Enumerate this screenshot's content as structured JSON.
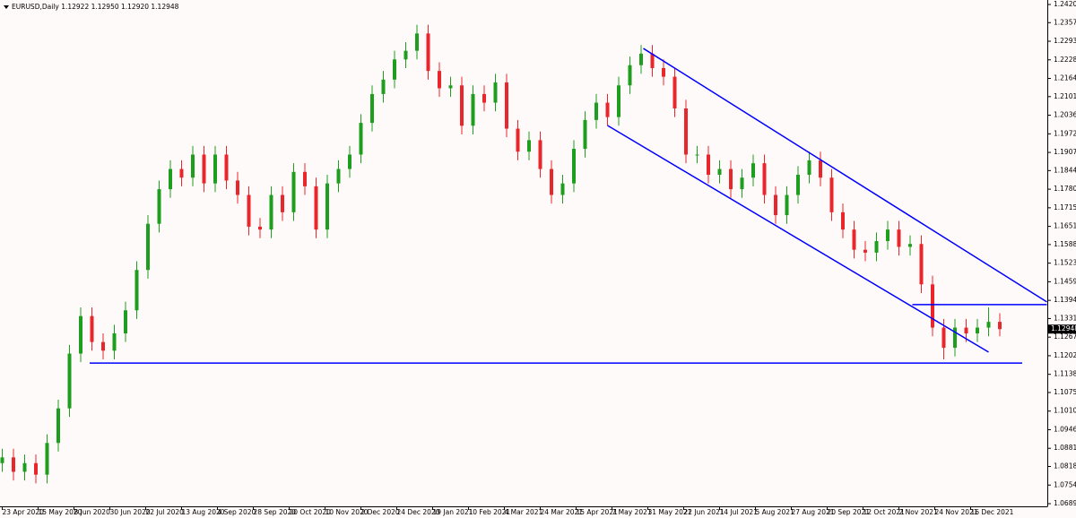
{
  "chart_data": {
    "type": "candlestick",
    "title": "EURUSD,Daily  1.12922 1.12950 1.12920 1.12948",
    "xlim": [
      -1,
      466.2
    ],
    "ylim": [
      1.06802,
      1.24298
    ],
    "xticks": [
      {
        "value": 0,
        "label": "23 Apr 2020"
      },
      {
        "value": 16,
        "label": "15 May 2020"
      },
      {
        "value": 32,
        "label": "8 Jun 2020"
      },
      {
        "value": 48,
        "label": "30 Jun 2020"
      },
      {
        "value": 64,
        "label": "22 Jul 2020"
      },
      {
        "value": 80,
        "label": "13 Aug 2020"
      },
      {
        "value": 96,
        "label": "4 Sep 2020"
      },
      {
        "value": 112,
        "label": "28 Sep 2020"
      },
      {
        "value": 128,
        "label": "20 Oct 2020"
      },
      {
        "value": 144,
        "label": "10 Nov 2020"
      },
      {
        "value": 160,
        "label": "2 Dec 2020"
      },
      {
        "value": 176,
        "label": "24 Dec 2020"
      },
      {
        "value": 192,
        "label": "19 Jan 2021"
      },
      {
        "value": 208,
        "label": "10 Feb 2021"
      },
      {
        "value": 224,
        "label": "4 Mar 2021"
      },
      {
        "value": 240,
        "label": "24 Mar 2021"
      },
      {
        "value": 256,
        "label": "15 Apr 2021"
      },
      {
        "value": 272,
        "label": "7 May 2021"
      },
      {
        "value": 288,
        "label": "31 May 2021"
      },
      {
        "value": 304,
        "label": "22 Jun 2021"
      },
      {
        "value": 320,
        "label": "14 Jul 2021"
      },
      {
        "value": 336,
        "label": "5 Aug 2021"
      },
      {
        "value": 352,
        "label": "27 Aug 2021"
      },
      {
        "value": 368,
        "label": "20 Sep 2021"
      },
      {
        "value": 384,
        "label": "12 Oct 2021"
      },
      {
        "value": 400,
        "label": "2 Nov 2021"
      },
      {
        "value": 416,
        "label": "24 Nov 2021"
      },
      {
        "value": 432,
        "label": "16 Dec 2021"
      }
    ],
    "yticks": [
      1.24205,
      1.23575,
      {
        "value": 1.2293,
        "label": "1.22930"
      },
      1.22285,
      {
        "value": 1.2164,
        "label": "1.21640"
      },
      {
        "value": 1.2101,
        "label": "1.21010"
      },
      1.20365,
      {
        "value": 1.1972,
        "label": "1.19720"
      },
      1.19075,
      1.18445,
      {
        "value": 1.178,
        "label": "1.17800"
      },
      1.17155,
      {
        "value": 1.1651,
        "label": "1.16510"
      },
      {
        "value": 1.1588,
        "label": "1.15880"
      },
      1.15235,
      {
        "value": 1.1459,
        "label": "1.14590"
      },
      1.13945,
      1.13315,
      {
        "value": 1.1267,
        "label": "1.12670"
      },
      1.12025,
      {
        "value": 1.1138,
        "label": "1.11380"
      },
      {
        "value": 1.1075,
        "label": "1.10750"
      },
      1.10105,
      {
        "value": 1.0946,
        "label": "1.09460"
      },
      1.08815,
      1.08185,
      {
        "value": 1.0754,
        "label": "1.07540"
      },
      1.06895
    ],
    "up_color": "#1e9e1e",
    "down_color": "#e8262b",
    "wick_color": "#555555",
    "series": [
      {
        "name": "EURUSD",
        "x": [
          0,
          5,
          10,
          15,
          20,
          25,
          30,
          35,
          40,
          45,
          50,
          55,
          60,
          65,
          70,
          75,
          80,
          85,
          90,
          95,
          100,
          105,
          110,
          115,
          120,
          125,
          130,
          135,
          140,
          145,
          150,
          155,
          160,
          165,
          170,
          175,
          180,
          185,
          190,
          195,
          200,
          205,
          210,
          215,
          220,
          225,
          230,
          235,
          240,
          245,
          250,
          255,
          260,
          265,
          270,
          275,
          280,
          285,
          290,
          295,
          300,
          305,
          310,
          315,
          320,
          325,
          330,
          335,
          340,
          345,
          350,
          355,
          360,
          365,
          370,
          375,
          380,
          385,
          390,
          395,
          400,
          405,
          410,
          415,
          420,
          425,
          430,
          435,
          440,
          445
        ],
        "open": [
          1.083,
          1.085,
          1.08,
          1.083,
          1.079,
          1.09,
          1.102,
          1.121,
          1.134,
          1.125,
          1.122,
          1.128,
          1.136,
          1.15,
          1.166,
          1.178,
          1.185,
          1.182,
          1.19,
          1.18,
          1.19,
          1.181,
          1.176,
          1.165,
          1.164,
          1.176,
          1.17,
          1.184,
          1.179,
          1.164,
          1.18,
          1.185,
          1.19,
          1.201,
          1.211,
          1.216,
          1.223,
          1.226,
          1.232,
          1.219,
          1.213,
          1.214,
          1.2,
          1.211,
          1.208,
          1.215,
          1.199,
          1.191,
          1.195,
          1.185,
          1.176,
          1.18,
          1.192,
          1.202,
          1.208,
          1.203,
          1.214,
          1.221,
          1.225,
          1.22,
          1.217,
          1.206,
          1.19,
          1.19,
          1.183,
          1.185,
          1.178,
          1.182,
          1.187,
          1.176,
          1.169,
          1.176,
          1.183,
          1.188,
          1.182,
          1.17,
          1.164,
          1.157,
          1.156,
          1.16,
          1.164,
          1.158,
          1.159,
          1.145,
          1.13,
          1.123,
          1.13,
          1.128,
          1.13,
          1.132
        ],
        "high": [
          1.088,
          1.088,
          1.086,
          1.086,
          1.093,
          1.105,
          1.124,
          1.137,
          1.137,
          1.128,
          1.131,
          1.139,
          1.153,
          1.169,
          1.181,
          1.188,
          1.188,
          1.193,
          1.193,
          1.193,
          1.193,
          1.184,
          1.179,
          1.168,
          1.179,
          1.179,
          1.187,
          1.187,
          1.182,
          1.183,
          1.188,
          1.193,
          1.204,
          1.214,
          1.219,
          1.226,
          1.229,
          1.235,
          1.235,
          1.222,
          1.217,
          1.217,
          1.214,
          1.214,
          1.218,
          1.218,
          1.202,
          1.198,
          1.198,
          1.188,
          1.183,
          1.195,
          1.205,
          1.211,
          1.211,
          1.217,
          1.224,
          1.228,
          1.228,
          1.223,
          1.22,
          1.209,
          1.193,
          1.193,
          1.188,
          1.188,
          1.185,
          1.19,
          1.19,
          1.179,
          1.179,
          1.186,
          1.191,
          1.191,
          1.185,
          1.173,
          1.167,
          1.16,
          1.163,
          1.167,
          1.167,
          1.162,
          1.162,
          1.148,
          1.133,
          1.133,
          1.133,
          1.133,
          1.137,
          1.135
        ],
        "low": [
          1.08,
          1.077,
          1.077,
          1.076,
          1.076,
          1.087,
          1.099,
          1.118,
          1.122,
          1.119,
          1.119,
          1.125,
          1.133,
          1.147,
          1.163,
          1.175,
          1.179,
          1.179,
          1.177,
          1.177,
          1.178,
          1.173,
          1.162,
          1.161,
          1.161,
          1.167,
          1.167,
          1.176,
          1.161,
          1.161,
          1.177,
          1.182,
          1.187,
          1.198,
          1.208,
          1.213,
          1.22,
          1.223,
          1.216,
          1.21,
          1.21,
          1.197,
          1.197,
          1.205,
          1.205,
          1.196,
          1.188,
          1.188,
          1.182,
          1.173,
          1.173,
          1.177,
          1.189,
          1.199,
          1.2,
          1.2,
          1.211,
          1.218,
          1.217,
          1.214,
          1.203,
          1.187,
          1.187,
          1.18,
          1.18,
          1.175,
          1.175,
          1.179,
          1.173,
          1.166,
          1.166,
          1.173,
          1.18,
          1.179,
          1.167,
          1.161,
          1.154,
          1.153,
          1.153,
          1.157,
          1.155,
          1.155,
          1.142,
          1.127,
          1.119,
          1.12,
          1.125,
          1.125,
          1.127,
          1.127
        ],
        "close": [
          1.085,
          1.08,
          1.083,
          1.079,
          1.09,
          1.102,
          1.121,
          1.134,
          1.125,
          1.122,
          1.128,
          1.136,
          1.15,
          1.166,
          1.178,
          1.185,
          1.182,
          1.19,
          1.18,
          1.19,
          1.181,
          1.176,
          1.165,
          1.164,
          1.176,
          1.17,
          1.184,
          1.179,
          1.164,
          1.18,
          1.185,
          1.19,
          1.201,
          1.211,
          1.216,
          1.223,
          1.226,
          1.232,
          1.219,
          1.213,
          1.214,
          1.2,
          1.211,
          1.208,
          1.215,
          1.199,
          1.191,
          1.195,
          1.185,
          1.176,
          1.18,
          1.192,
          1.202,
          1.208,
          1.203,
          1.214,
          1.221,
          1.225,
          1.22,
          1.217,
          1.206,
          1.19,
          1.19,
          1.183,
          1.185,
          1.178,
          1.182,
          1.187,
          1.176,
          1.169,
          1.176,
          1.183,
          1.188,
          1.182,
          1.17,
          1.164,
          1.157,
          1.156,
          1.16,
          1.164,
          1.158,
          1.159,
          1.145,
          1.13,
          1.123,
          1.13,
          1.128,
          1.13,
          1.132,
          1.12948
        ]
      }
    ],
    "lines": [
      {
        "x": [
          39,
          455
        ],
        "y": [
          1.1177,
          1.1177
        ]
      },
      {
        "x": [
          286,
          466
        ],
        "y": [
          1.2268,
          1.1389
        ]
      },
      {
        "x": [
          270,
          440
        ],
        "y": [
          1.2001,
          1.1215
        ]
      },
      {
        "x": [
          406,
          466
        ],
        "y": [
          1.138,
          1.138
        ]
      }
    ],
    "line_color": "#0000ff"
  }
}
